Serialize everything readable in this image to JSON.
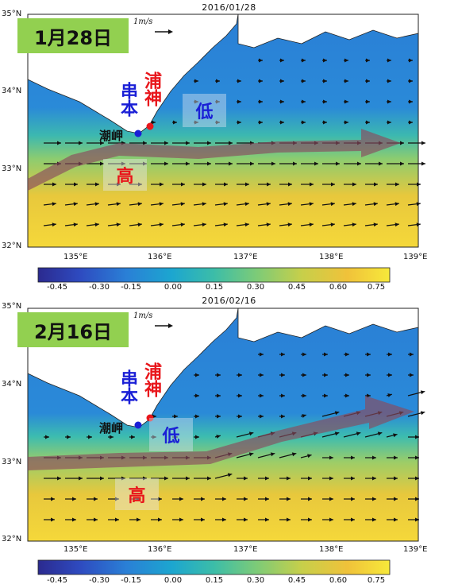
{
  "panels": [
    {
      "date": "2016/01/28",
      "badge": "1月28日",
      "scale_label": "1m/s",
      "labels": {
        "kushimoto": "串本",
        "uragami": "浦神",
        "shiomisaki": "潮岬",
        "low": "低",
        "high": "高"
      }
    },
    {
      "date": "2016/02/16",
      "badge": "2月16日",
      "scale_label": "1m/s",
      "labels": {
        "kushimoto": "串本",
        "uragami": "浦神",
        "shiomisaki": "潮岬",
        "low": "低",
        "high": "高"
      }
    }
  ],
  "axes": {
    "y_ticks": [
      "35°N",
      "34°N",
      "33°N",
      "32°N"
    ],
    "x_ticks": [
      "135°E",
      "136°E",
      "137°E",
      "138°E",
      "139°E"
    ]
  },
  "colorbar": {
    "ticks": [
      "-0.45",
      "-0.30",
      "-0.15",
      "0.00",
      "0.15",
      "0.30",
      "0.45",
      "0.60",
      "0.75"
    ],
    "colors": [
      "#2b2a8f",
      "#2e4bc0",
      "#2a7fd6",
      "#1ca6d0",
      "#3cbda8",
      "#7ccb78",
      "#c7cf4a",
      "#f0c23a",
      "#f7e93a"
    ]
  },
  "colors": {
    "kushimoto": "#1a1fd6",
    "uragami": "#e8161b",
    "badge": "#92d050",
    "stream_arrow": "#8b4a5e"
  }
}
